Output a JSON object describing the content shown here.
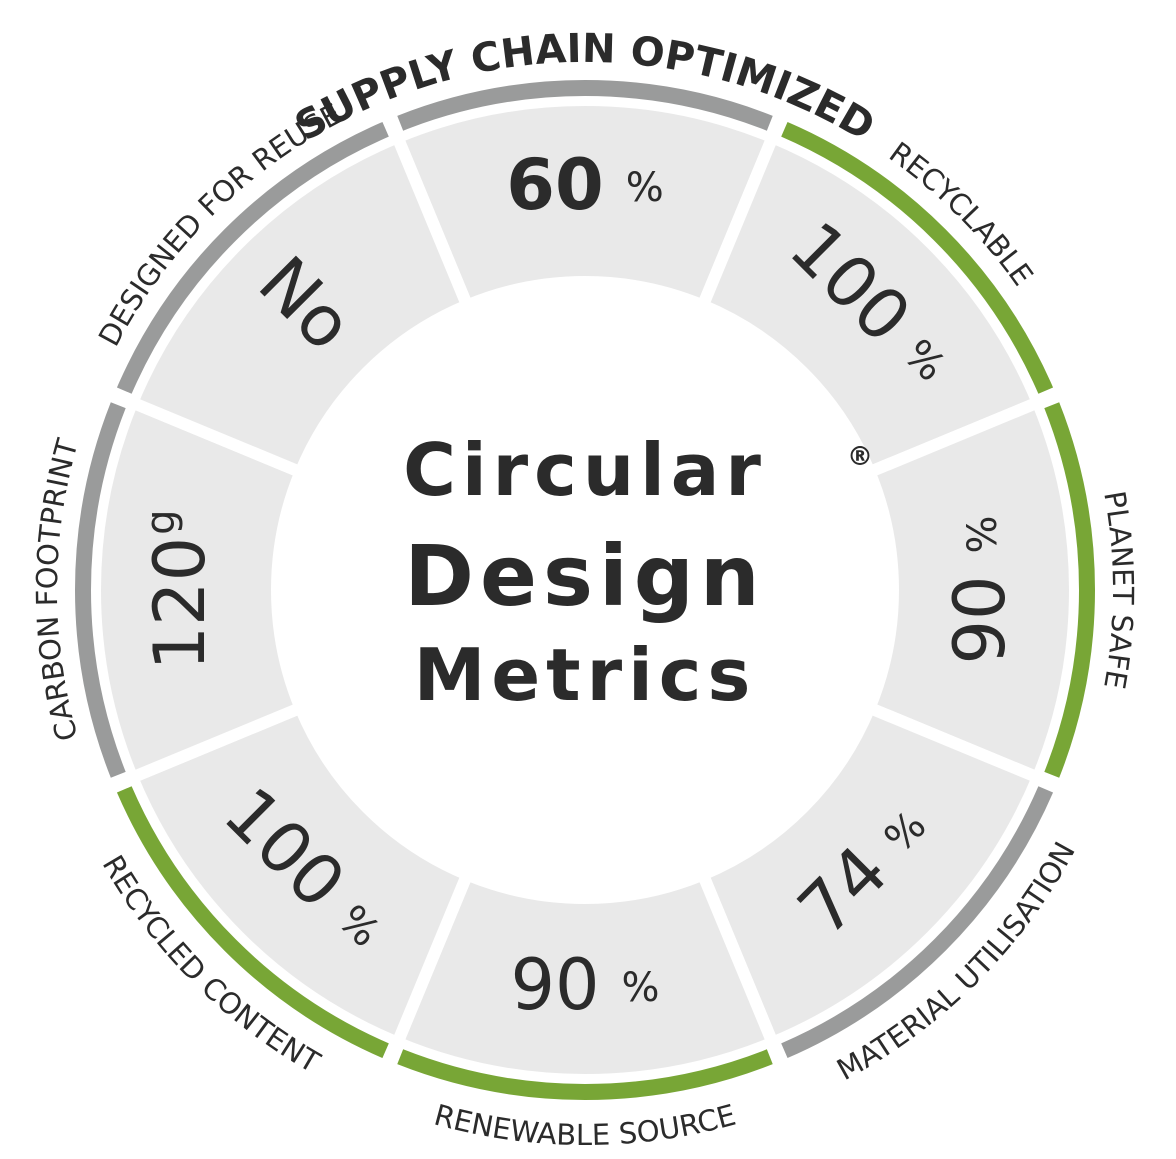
{
  "title": {
    "line1": "Circular",
    "line2": "Design",
    "line3": "Metrics",
    "mark": "®"
  },
  "segments": [
    {
      "label": "SUPPLY CHAIN OPTIMIZED",
      "value": "60",
      "unit": "%",
      "color": "#9a9b9b"
    },
    {
      "label": "RECYCLABLE",
      "value": "100",
      "unit": "%",
      "color": "#78a636"
    },
    {
      "label": "PLANET SAFE",
      "value": "90",
      "unit": "%",
      "color": "#78a636"
    },
    {
      "label": "MATERIAL UTILISATION",
      "value": "74",
      "unit": "%",
      "color": "#9a9b9b"
    },
    {
      "label": "RENEWABLE SOURCE",
      "value": "90",
      "unit": "%",
      "color": "#78a636"
    },
    {
      "label": "RECYCLED CONTENT",
      "value": "100",
      "unit": "%",
      "color": "#78a636"
    },
    {
      "label": "CARBON FOOTPRINT",
      "value": "120",
      "unit": "g",
      "color": "#9a9b9b"
    },
    {
      "label": "DESIGNED FOR REUSE",
      "value": "No",
      "unit": "",
      "color": "#9a9b9b"
    }
  ]
}
